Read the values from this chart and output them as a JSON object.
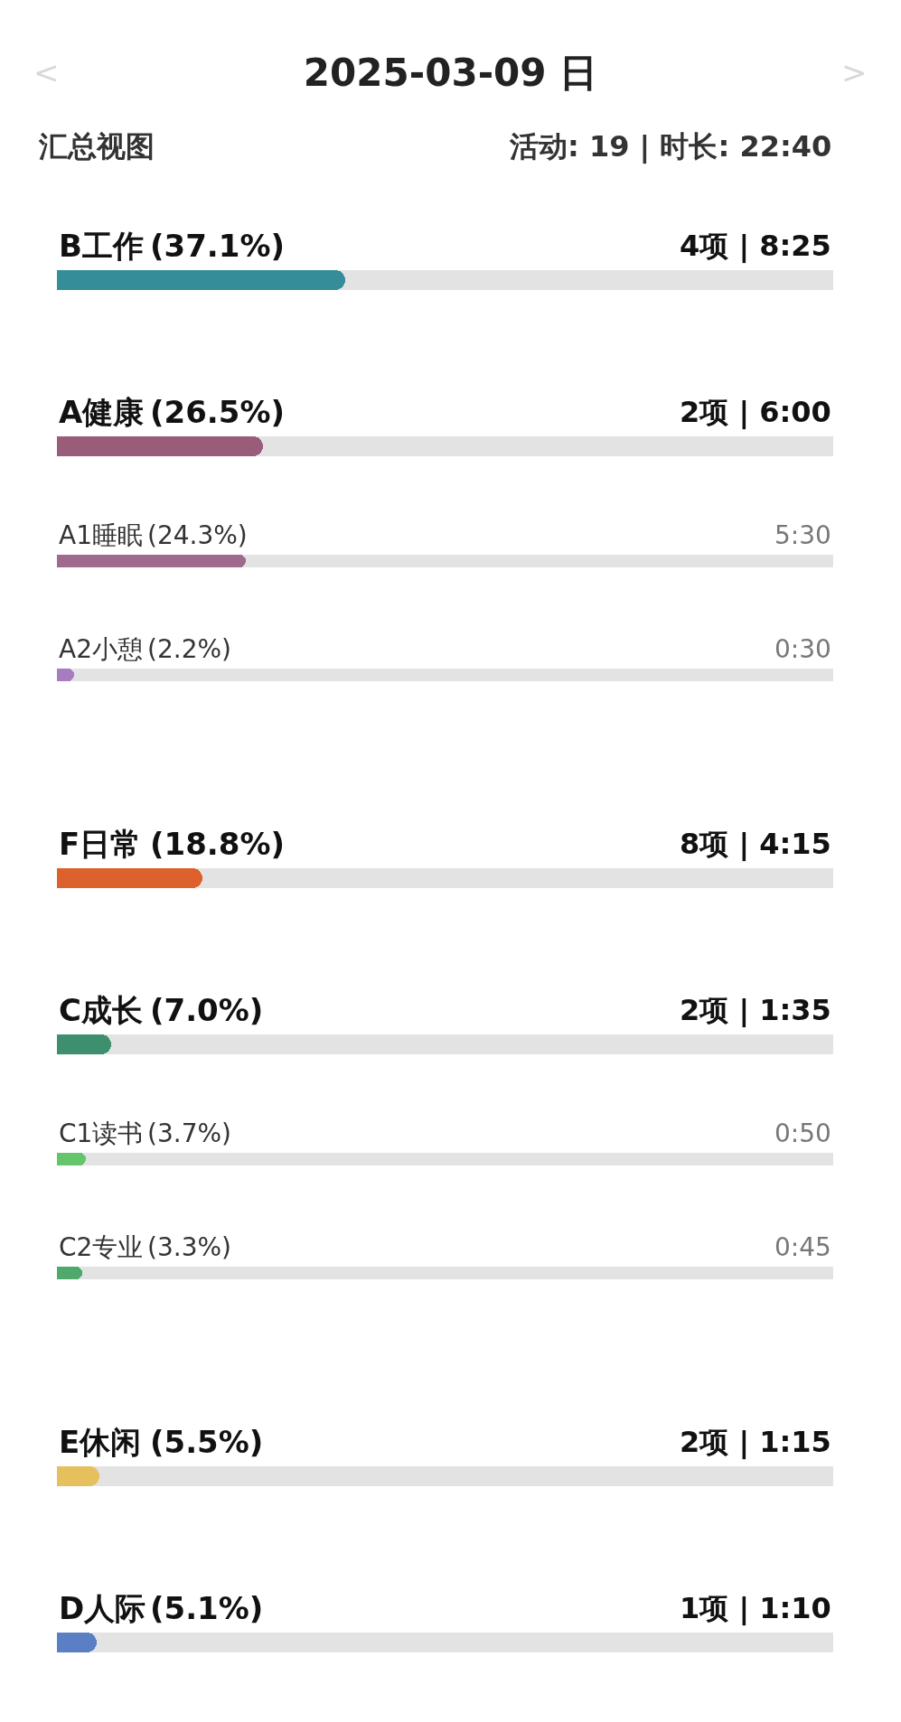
{
  "chart_data": {
    "type": "bar",
    "orientation": "horizontal",
    "title": "2025-03-09 日",
    "subtitle": "汇总视图",
    "annotations": [
      "活动: 19 | 时长: 22:40",
      "<",
      ">",
      "4项 | 8:25",
      "2项 | 6:00",
      "5:30",
      "0:30",
      "8项 | 4:15",
      "2项 | 1:35",
      "0:50",
      "0:45",
      "2项 | 1:15",
      "1项 | 1:10"
    ],
    "categories": [
      "B工作",
      "A健康",
      "A1睡眠",
      "A2小憩",
      "F日常",
      "C成长",
      "C1读书",
      "C2专业",
      "E休闲",
      "D人际"
    ],
    "series": [
      {
        "values": [
          37.1,
          26.5,
          null,
          null,
          18.8,
          7.0,
          null,
          null,
          5.5,
          5.1
        ],
        "colors": [
          "#348d99",
          "#9a5d79",
          null,
          null,
          "#dc612c",
          "#3e8f6d",
          null,
          null,
          "#e5c05c",
          "#5b7fc4"
        ],
        "value_labels": [
          "(37.1%)",
          "(26.5%)",
          null,
          null,
          "(18.8%)",
          "(7.0%)",
          null,
          null,
          "(5.5%)",
          "(5.1%)"
        ]
      },
      {
        "values": [
          null,
          null,
          24.3,
          2.2,
          null,
          null,
          3.7,
          3.3,
          null,
          null
        ],
        "colors": [
          null,
          null,
          "#a06a8f",
          "#a77cc1",
          null,
          null,
          "#66c56b",
          "#4ea96b",
          null,
          null
        ],
        "value_labels": [
          null,
          null,
          "(24.3%)",
          "(2.2%)",
          null,
          null,
          "(3.7%)",
          "(3.3%)",
          null,
          null
        ]
      }
    ],
    "xlim": [
      0,
      100
    ],
    "tick_labels": false,
    "grid": false
  }
}
